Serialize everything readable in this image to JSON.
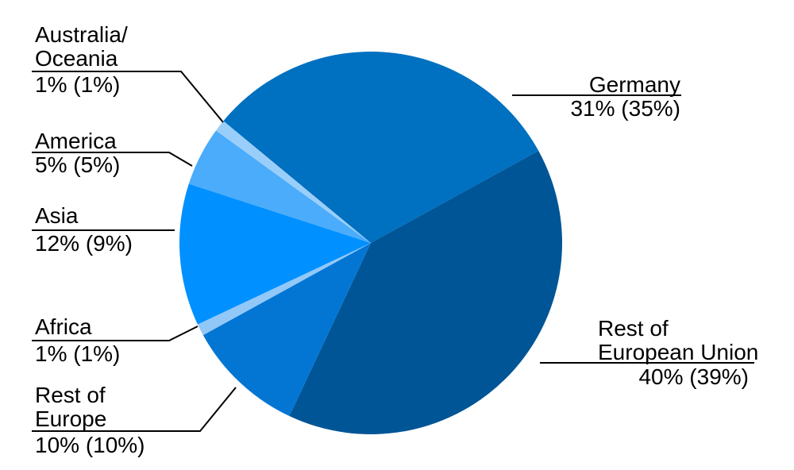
{
  "chart_data": {
    "type": "pie",
    "title": "",
    "legend": "none",
    "label_format": "current% (previous%)",
    "start_angle_deg": -50.4,
    "direction": "clockwise",
    "slices": [
      {
        "name": "Germany",
        "label_lines": [
          "Germany"
        ],
        "value": 31,
        "prev_value": 35,
        "value_label": "31% (35%)",
        "color": "#0070C0"
      },
      {
        "name": "Rest of European Union",
        "label_lines": [
          "Rest of",
          "European Union"
        ],
        "value": 40,
        "prev_value": 39,
        "value_label": "40% (39%)",
        "color": "#005596"
      },
      {
        "name": "Rest of Europe",
        "label_lines": [
          "Rest of",
          "Europe"
        ],
        "value": 10,
        "prev_value": 10,
        "value_label": "10% (10%)",
        "color": "#0376D4"
      },
      {
        "name": "Africa",
        "label_lines": [
          "Africa"
        ],
        "value": 1,
        "prev_value": 1,
        "value_label": "1% (1%)",
        "color": "#92C8F8"
      },
      {
        "name": "Asia",
        "label_lines": [
          "Asia"
        ],
        "value": 12,
        "prev_value": 9,
        "value_label": "12% (9%)",
        "color": "#0090FF"
      },
      {
        "name": "America",
        "label_lines": [
          "America"
        ],
        "value": 5,
        "prev_value": 5,
        "value_label": "5% (5%)",
        "color": "#4AACFB"
      },
      {
        "name": "Australia/Oceania",
        "label_lines": [
          "Australia/",
          "Oceania"
        ],
        "value": 1,
        "prev_value": 1,
        "value_label": "1% (1%)",
        "color": "#9ACEFA"
      }
    ],
    "leader_line_color": "#000000"
  }
}
